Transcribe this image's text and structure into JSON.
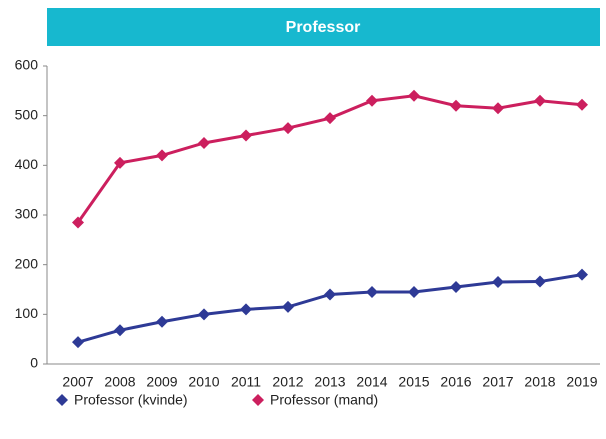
{
  "chart_data": {
    "type": "line",
    "title": "Professor",
    "categories": [
      "2007",
      "2008",
      "2009",
      "2010",
      "2011",
      "2012",
      "2013",
      "2014",
      "2015",
      "2016",
      "2017",
      "2018",
      "2019"
    ],
    "series": [
      {
        "name": "Professor (kvinde)",
        "color": "#2e3a96",
        "values": [
          44,
          68,
          85,
          100,
          110,
          115,
          140,
          145,
          145,
          155,
          165,
          166,
          180
        ]
      },
      {
        "name": "Professor (mand)",
        "color": "#cc1f5e",
        "values": [
          285,
          405,
          420,
          445,
          460,
          475,
          495,
          530,
          540,
          520,
          515,
          530,
          522
        ]
      }
    ],
    "ylim": [
      0,
      600
    ],
    "yticks": [
      0,
      100,
      200,
      300,
      400,
      500,
      600
    ],
    "grid": false,
    "legend": "bottom"
  }
}
